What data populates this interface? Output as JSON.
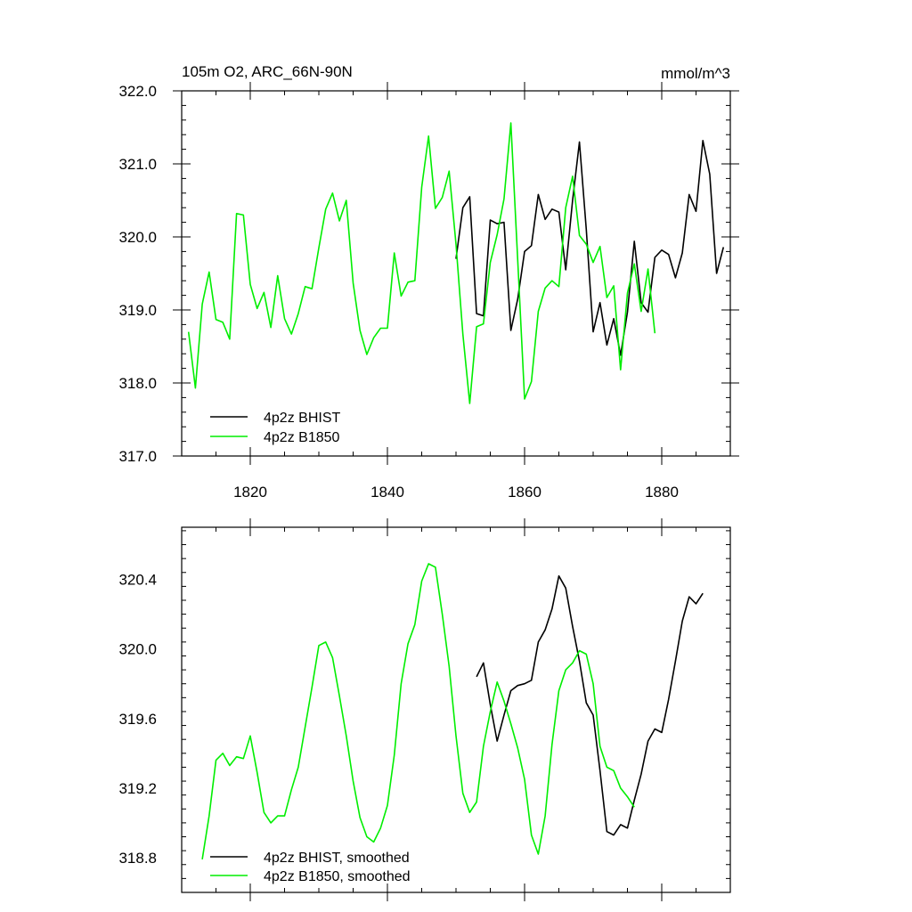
{
  "colors": {
    "bhist": "#000000",
    "b1850": "#00ee00"
  },
  "chart_data": [
    {
      "type": "line",
      "title_left": "105m O2, ARC_66N-90N",
      "title_right": "mmol/m^3",
      "xlim": [
        1810,
        1890
      ],
      "ylim": [
        317.0,
        322.0
      ],
      "x_ticks": [
        1820,
        1840,
        1860,
        1880
      ],
      "x_tick_labels": [
        "1820",
        "1840",
        "1860",
        "1880"
      ],
      "y_ticks": [
        317.0,
        318.0,
        319.0,
        320.0,
        321.0,
        322.0
      ],
      "y_tick_labels": [
        "317.0",
        "318.0",
        "319.0",
        "320.0",
        "321.0",
        "322.0"
      ],
      "legend_position": "bottom-left",
      "series": [
        {
          "name": "4p2z BHIST",
          "color": "#000000",
          "x": [
            1850,
            1851,
            1852,
            1853,
            1854,
            1855,
            1856,
            1857,
            1858,
            1859,
            1860,
            1861,
            1862,
            1863,
            1864,
            1865,
            1866,
            1867,
            1868,
            1869,
            1870,
            1871,
            1872,
            1873,
            1874,
            1875,
            1876,
            1877,
            1878,
            1879,
            1880,
            1881,
            1882,
            1883,
            1884,
            1885,
            1886,
            1887,
            1888,
            1889
          ],
          "y": [
            319.7,
            320.4,
            320.55,
            318.95,
            318.92,
            320.23,
            320.18,
            320.2,
            318.72,
            319.15,
            319.8,
            319.88,
            320.58,
            320.24,
            320.38,
            320.34,
            319.55,
            320.5,
            321.3,
            320.1,
            318.7,
            319.1,
            318.52,
            318.88,
            318.38,
            318.97,
            319.94,
            319.1,
            318.97,
            319.72,
            319.82,
            319.76,
            319.44,
            319.78,
            320.58,
            320.35,
            321.32,
            320.86,
            319.5,
            319.86
          ]
        },
        {
          "name": "4p2z B1850",
          "color": "#00ee00",
          "x": [
            1811,
            1812,
            1813,
            1814,
            1815,
            1816,
            1817,
            1818,
            1819,
            1820,
            1821,
            1822,
            1823,
            1824,
            1825,
            1826,
            1827,
            1828,
            1829,
            1830,
            1831,
            1832,
            1833,
            1834,
            1835,
            1836,
            1837,
            1838,
            1839,
            1840,
            1841,
            1842,
            1843,
            1844,
            1845,
            1846,
            1847,
            1848,
            1849,
            1850,
            1851,
            1852,
            1853,
            1854,
            1855,
            1856,
            1857,
            1858,
            1859,
            1860,
            1861,
            1862,
            1863,
            1864,
            1865,
            1866,
            1867,
            1868,
            1869,
            1870,
            1871,
            1872,
            1873,
            1874,
            1875,
            1876,
            1877,
            1878,
            1879
          ],
          "y": [
            318.7,
            317.93,
            319.08,
            319.52,
            318.87,
            318.83,
            318.6,
            320.32,
            320.3,
            319.35,
            319.02,
            319.24,
            318.76,
            319.47,
            318.88,
            318.67,
            318.95,
            319.32,
            319.29,
            319.85,
            320.38,
            320.6,
            320.22,
            320.5,
            319.37,
            318.72,
            318.39,
            318.62,
            318.75,
            318.75,
            319.78,
            319.19,
            319.38,
            319.4,
            320.68,
            321.38,
            320.39,
            320.54,
            320.9,
            319.9,
            318.67,
            317.72,
            318.77,
            318.81,
            319.65,
            320.03,
            320.52,
            321.56,
            319.68,
            317.78,
            318.02,
            318.98,
            319.3,
            319.4,
            319.32,
            320.4,
            320.83,
            320.02,
            319.9,
            319.65,
            319.87,
            319.17,
            319.33,
            318.18,
            319.23,
            319.63,
            318.98,
            319.56,
            318.68
          ]
        }
      ]
    },
    {
      "type": "line",
      "xlim": [
        1810,
        1890
      ],
      "ylim": [
        318.6,
        320.7
      ],
      "x_ticks": [
        1820,
        1840,
        1860,
        1880
      ],
      "y_ticks": [
        318.8,
        319.2,
        319.6,
        320.0,
        320.4
      ],
      "y_tick_labels": [
        "318.8",
        "319.2",
        "319.6",
        "320.0",
        "320.4"
      ],
      "legend_position": "bottom-left",
      "series": [
        {
          "name": "4p2z BHIST, smoothed",
          "color": "#000000",
          "x": [
            1853,
            1854,
            1855,
            1856,
            1857,
            1858,
            1859,
            1860,
            1861,
            1862,
            1863,
            1864,
            1865,
            1866,
            1867,
            1868,
            1869,
            1870,
            1871,
            1872,
            1873,
            1874,
            1875,
            1876,
            1877,
            1878,
            1879,
            1880,
            1881,
            1882,
            1883,
            1884,
            1885,
            1886,
            1887
          ],
          "y": [
            319.84,
            319.92,
            319.68,
            319.47,
            319.62,
            319.76,
            319.79,
            319.8,
            319.82,
            320.04,
            320.11,
            320.23,
            320.42,
            320.35,
            320.13,
            319.93,
            319.69,
            319.62,
            319.3,
            318.95,
            318.93,
            318.99,
            318.97,
            319.13,
            319.28,
            319.47,
            319.54,
            319.52,
            319.71,
            319.93,
            320.16,
            320.3,
            320.26,
            320.32,
            null
          ]
        },
        {
          "name": "4p2z B1850, smoothed",
          "color": "#00ee00",
          "x": [
            1813,
            1814,
            1815,
            1816,
            1817,
            1818,
            1819,
            1820,
            1821,
            1822,
            1823,
            1824,
            1825,
            1826,
            1827,
            1828,
            1829,
            1830,
            1831,
            1832,
            1833,
            1834,
            1835,
            1836,
            1837,
            1838,
            1839,
            1840,
            1841,
            1842,
            1843,
            1844,
            1845,
            1846,
            1847,
            1848,
            1849,
            1850,
            1851,
            1852,
            1853,
            1854,
            1855,
            1856,
            1857,
            1858,
            1859,
            1860,
            1861,
            1862,
            1863,
            1864,
            1865,
            1866,
            1867,
            1868,
            1869,
            1870,
            1871,
            1872,
            1873,
            1874,
            1875,
            1876
          ],
          "y": [
            318.79,
            319.04,
            319.36,
            319.4,
            319.33,
            319.38,
            319.37,
            319.5,
            319.29,
            319.06,
            319.0,
            319.04,
            319.04,
            319.19,
            319.32,
            319.55,
            319.78,
            320.02,
            320.04,
            319.95,
            319.73,
            319.5,
            319.24,
            319.03,
            318.92,
            318.89,
            318.97,
            319.1,
            319.39,
            319.8,
            320.03,
            320.14,
            320.39,
            320.49,
            320.47,
            320.2,
            319.9,
            319.5,
            319.17,
            319.06,
            319.12,
            319.44,
            319.64,
            319.81,
            319.7,
            319.57,
            319.43,
            319.25,
            318.93,
            318.82,
            319.04,
            319.45,
            319.76,
            319.88,
            319.92,
            319.99,
            319.97,
            319.8,
            319.44,
            319.32,
            319.3,
            319.2,
            319.15,
            319.09
          ]
        }
      ]
    }
  ]
}
